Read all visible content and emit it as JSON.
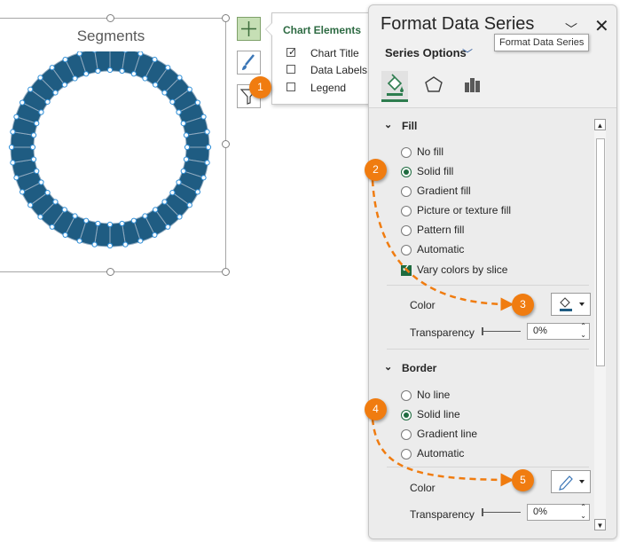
{
  "chart": {
    "title": "Segments",
    "segment_count": 40,
    "ring_color": "#1f5c82"
  },
  "chart_elements": {
    "title": "Chart Elements",
    "items": [
      {
        "label": "Chart Title",
        "checked": true
      },
      {
        "label": "Data Labels",
        "checked": false
      },
      {
        "label": "Legend",
        "checked": false
      }
    ]
  },
  "pane": {
    "title": "Format Data Series",
    "series_options": "Series Options",
    "tooltip": "Format Data Series",
    "fill": {
      "heading": "Fill",
      "options": [
        "No fill",
        "Solid fill",
        "Gradient fill",
        "Picture or texture fill",
        "Pattern fill",
        "Automatic"
      ],
      "selected": "Solid fill",
      "vary_colors": "Vary colors by slice",
      "color_label": "Color",
      "transparency_label": "Transparency",
      "transparency_value": "0%"
    },
    "border": {
      "heading": "Border",
      "options": [
        "No line",
        "Solid line",
        "Gradient line",
        "Automatic"
      ],
      "selected": "Solid line",
      "color_label": "Color",
      "transparency_label": "Transparency",
      "transparency_value": "0%"
    }
  },
  "callouts": [
    "1",
    "2",
    "3",
    "4",
    "5"
  ],
  "accent_color": "#f07c10"
}
